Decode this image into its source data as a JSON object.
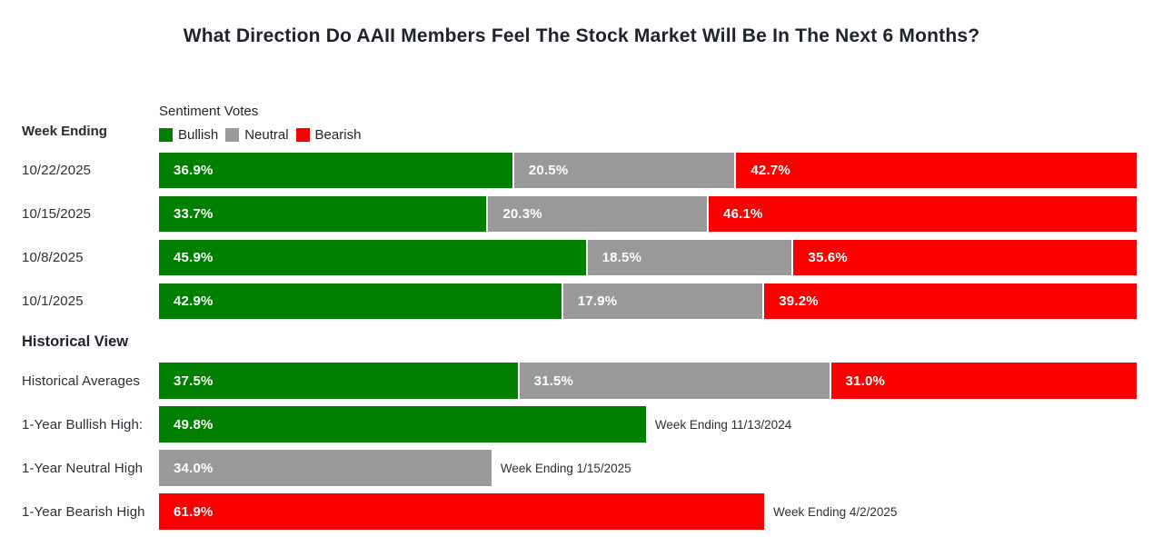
{
  "title": "What Direction Do AAII Members Feel The Stock Market Will Be In The Next 6 Months?",
  "week_ending_label": "Week Ending",
  "historical_heading": "Historical View",
  "colors": {
    "bullish": "#008000",
    "neutral": "#999999",
    "bearish": "#fa0000"
  },
  "legend": {
    "title": "Sentiment Votes",
    "items": [
      {
        "label": "Bullish",
        "color": "#008000"
      },
      {
        "label": "Neutral",
        "color": "#999999"
      },
      {
        "label": "Bearish",
        "color": "#fa0000"
      }
    ]
  },
  "rows": {
    "weekly": [
      {
        "label": "10/22/2025",
        "segments": [
          {
            "name": "Bullish",
            "value": "36.9%"
          },
          {
            "name": "Neutral",
            "value": "20.5%"
          },
          {
            "name": "Bearish",
            "value": "42.7%"
          }
        ]
      },
      {
        "label": "10/15/2025",
        "segments": [
          {
            "name": "Bullish",
            "value": "33.7%"
          },
          {
            "name": "Neutral",
            "value": "20.3%"
          },
          {
            "name": "Bearish",
            "value": "46.1%"
          }
        ]
      },
      {
        "label": "10/8/2025",
        "segments": [
          {
            "name": "Bullish",
            "value": "45.9%"
          },
          {
            "name": "Neutral",
            "value": "18.5%"
          },
          {
            "name": "Bearish",
            "value": "35.6%"
          }
        ]
      },
      {
        "label": "10/1/2025",
        "segments": [
          {
            "name": "Bullish",
            "value": "42.9%"
          },
          {
            "name": "Neutral",
            "value": "17.9%"
          },
          {
            "name": "Bearish",
            "value": "39.2%"
          }
        ]
      }
    ],
    "historical": [
      {
        "label": "Historical Averages",
        "segments": [
          {
            "name": "Bullish",
            "value": "37.5%"
          },
          {
            "name": "Neutral",
            "value": "31.5%"
          },
          {
            "name": "Bearish",
            "value": "31.0%"
          }
        ]
      },
      {
        "label": "1-Year Bullish High:",
        "segment": {
          "name": "Bullish",
          "value": "49.8%"
        },
        "annotation": "Week Ending 11/13/2024"
      },
      {
        "label": "1-Year Neutral High",
        "segment": {
          "name": "Neutral",
          "value": "34.0%"
        },
        "annotation": "Week Ending 1/15/2025"
      },
      {
        "label": "1-Year Bearish High",
        "segment": {
          "name": "Bearish",
          "value": "61.9%"
        },
        "annotation": "Week Ending 4/2/2025"
      }
    ]
  },
  "chart_data": {
    "type": "bar",
    "subtype": "horizontal-stacked",
    "title": "What Direction Do AAII Members Feel The Stock Market Will Be In The Next 6 Months?",
    "legend_title": "Sentiment Votes",
    "legend_position": "top",
    "xlim": [
      0,
      100
    ],
    "grid": false,
    "categories": [
      "10/22/2025",
      "10/15/2025",
      "10/8/2025",
      "10/1/2025"
    ],
    "series": [
      {
        "name": "Bullish",
        "color": "#008000",
        "values": [
          36.9,
          33.7,
          45.9,
          42.9
        ]
      },
      {
        "name": "Neutral",
        "color": "#999999",
        "values": [
          20.5,
          20.3,
          18.5,
          17.9
        ]
      },
      {
        "name": "Bearish",
        "color": "#fa0000",
        "values": [
          42.7,
          46.1,
          35.6,
          39.2
        ]
      }
    ],
    "historical_view": {
      "averages": {
        "category": "Historical Averages",
        "Bullish": 37.5,
        "Neutral": 31.5,
        "Bearish": 31.0
      },
      "one_year_highs": [
        {
          "label": "1-Year Bullish High:",
          "series": "Bullish",
          "value": 49.8,
          "annotation": "Week Ending 11/13/2024"
        },
        {
          "label": "1-Year Neutral High",
          "series": "Neutral",
          "value": 34.0,
          "annotation": "Week Ending 1/15/2025"
        },
        {
          "label": "1-Year Bearish High",
          "series": "Bearish",
          "value": 61.9,
          "annotation": "Week Ending 4/2/2025"
        }
      ]
    }
  }
}
